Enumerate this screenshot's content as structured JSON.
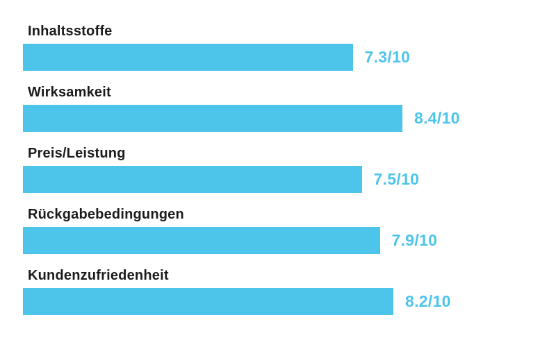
{
  "chart_data": {
    "type": "bar",
    "orientation": "horizontal",
    "title": "",
    "xlabel": "",
    "ylabel": "",
    "axis_range": [
      0,
      10
    ],
    "grid": false,
    "legend": false,
    "categories": [
      "Inhaltsstoffe",
      "Wirksamkeit",
      "Preis/Leistung",
      "Rückgabebedingungen",
      "Kundenzufriedenheit"
    ],
    "values": [
      7.3,
      8.4,
      7.5,
      7.9,
      8.2
    ],
    "value_labels": [
      "7.3/10",
      "8.4/10",
      "7.5/10",
      "7.9/10",
      "8.2/10"
    ],
    "scale_max": 10,
    "bar_color": "#4dc4ea",
    "value_text_color": "#4dc4ea",
    "label_color": "#1b1b1b",
    "background": "#ffffff"
  }
}
